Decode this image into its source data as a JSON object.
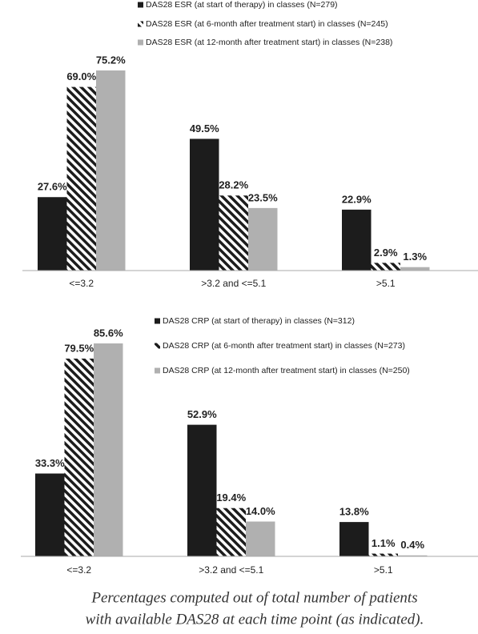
{
  "chart_data": [
    {
      "type": "bar",
      "legend": "top",
      "categories": [
        "<=3.2",
        ">3.2 and <=5.1",
        ">5.1"
      ],
      "series": [
        {
          "name": "DAS28 ESR (at start of therapy) in classes (N=279)",
          "color": "#1c1c1c",
          "hatch": false,
          "values": [
            27.6,
            49.5,
            22.9
          ],
          "value_labels": [
            "27.6%",
            "49.5%",
            "22.9%"
          ]
        },
        {
          "name": "DAS28 ESR (at 6-month after treatment start) in classes (N=245)",
          "color": "#1c1c1c",
          "hatch": true,
          "values": [
            69.0,
            28.2,
            2.9
          ],
          "value_labels": [
            "69.0%",
            "28.2%",
            "2.9%"
          ]
        },
        {
          "name": "DAS28 ESR (at 12-month after treatment start) in classes (N=238)",
          "color": "#b0b0b0",
          "hatch": false,
          "values": [
            75.2,
            23.5,
            1.3
          ],
          "value_labels": [
            "75.2%",
            "23.5%",
            "1.3%"
          ]
        }
      ]
    },
    {
      "type": "bar",
      "legend": "upper right",
      "categories": [
        "<=3.2",
        ">3.2 and <=5.1",
        ">5.1"
      ],
      "series": [
        {
          "name": "DAS28 CRP (at start of therapy) in classes (N=312)",
          "color": "#1c1c1c",
          "hatch": false,
          "values": [
            33.3,
            52.9,
            13.8
          ],
          "value_labels": [
            "33.3%",
            "52.9%",
            "13.8%"
          ]
        },
        {
          "name": "DAS28 CRP (at 6-month after treatment start) in classes (N=273)",
          "color": "#1c1c1c",
          "hatch": true,
          "values": [
            79.5,
            19.4,
            1.1
          ],
          "value_labels": [
            "79.5%",
            "19.4%",
            "1.1%"
          ]
        },
        {
          "name": "DAS28 CRP (at 12-month after treatment start) in classes (N=250)",
          "color": "#b0b0b0",
          "hatch": false,
          "values": [
            85.6,
            14.0,
            0.4
          ],
          "value_labels": [
            "85.6%",
            "14.0%",
            "0.4%"
          ]
        }
      ]
    }
  ],
  "caption": [
    "Percentages computed out of total number of patients",
    "with available DAS28 at each time point (as indicated)."
  ]
}
